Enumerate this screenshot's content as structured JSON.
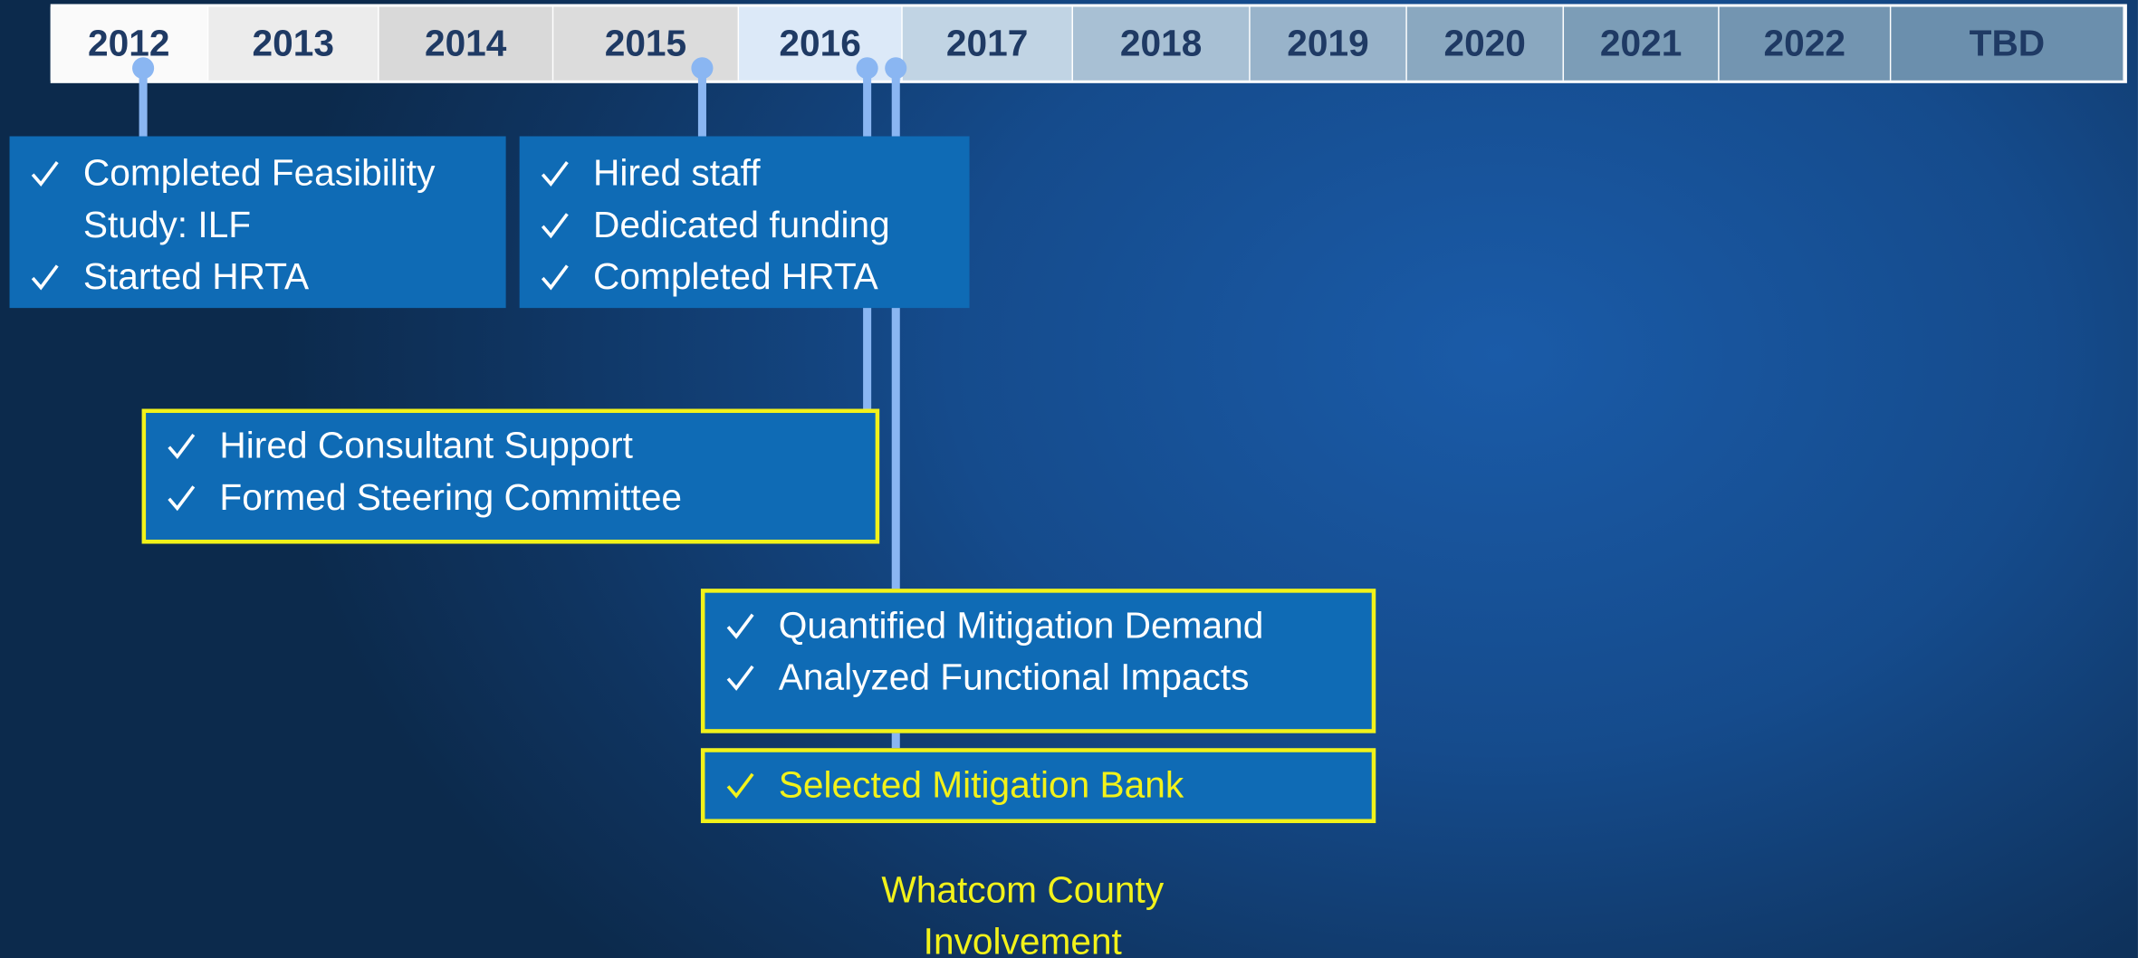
{
  "timeline": {
    "years": [
      "2012",
      "2013",
      "2014",
      "2015",
      "2016",
      "2017",
      "2018",
      "2019",
      "2020",
      "2021",
      "2022",
      "TBD"
    ]
  },
  "boxes": [
    {
      "items": [
        "Completed Feasibility Study: ILF",
        "Started HRTA"
      ]
    },
    {
      "items": [
        "Hired staff",
        "Dedicated funding",
        "Completed HRTA"
      ]
    },
    {
      "items": [
        "Hired Consultant Support",
        "Formed Steering Committee"
      ]
    },
    {
      "items": [
        "Quantified Mitigation Demand",
        "Analyzed Functional Impacts"
      ]
    },
    {
      "items": [
        "Selected Mitigation Bank"
      ]
    }
  ],
  "caption": "Whatcom County Involvement"
}
